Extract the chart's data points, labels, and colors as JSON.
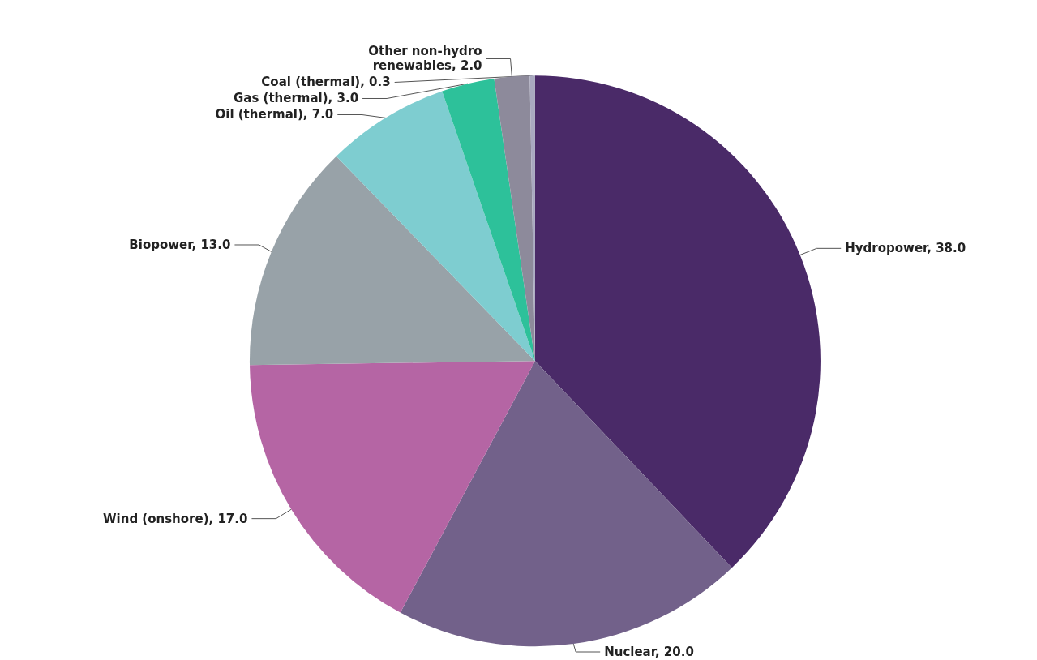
{
  "chart_data": {
    "type": "pie",
    "categories": [
      "Hydropower",
      "Nuclear",
      "Wind (onshore)",
      "Biopower",
      "Oil (thermal)",
      "Gas (thermal)",
      "Other non-hydro\nrenewables",
      "Coal (thermal)"
    ],
    "values": [
      38.0,
      20.0,
      17.0,
      13.0,
      7.0,
      3.0,
      2.0,
      0.3
    ],
    "value_labels": [
      "38.0",
      "20.0",
      "17.0",
      "13.0",
      "7.0",
      "3.0",
      "2.0",
      "0.3"
    ],
    "colors": [
      "#4a2a68",
      "#72618a",
      "#b565a4",
      "#98a2a8",
      "#7ecdd0",
      "#2dc19a",
      "#8d8a9b",
      "#a9a9c0"
    ],
    "legend": false
  }
}
